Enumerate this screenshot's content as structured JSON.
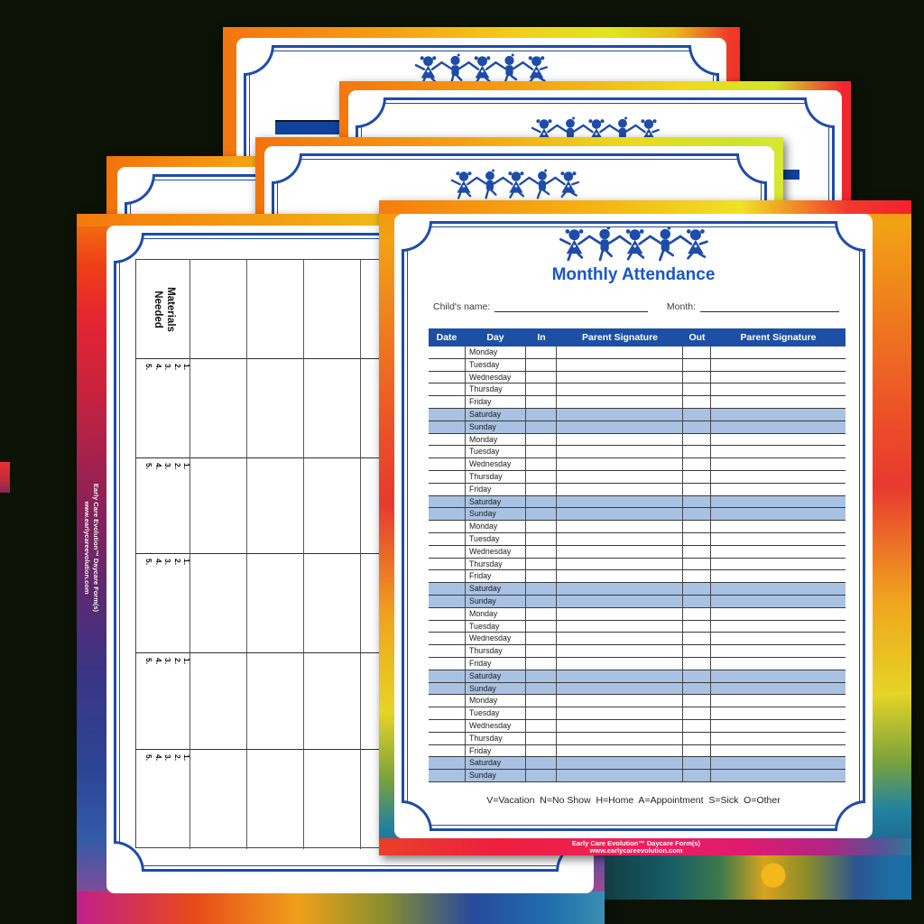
{
  "background_color": "#0c1206",
  "brand": {
    "line1": "Early Care Evolution™ Daycare Form(s)",
    "line2": "www.earlycareevolution.com"
  },
  "colors": {
    "frame_blue": "#1e4ca8",
    "header_band": "#1d4fa5",
    "title_blue": "#1a57c9",
    "weekend_row": "#a9c2e3"
  },
  "attendance_form": {
    "title": "Monthly Attendance",
    "child_name_label": "Child's name:",
    "month_label": "Month:",
    "table": {
      "headers": [
        "Date",
        "Day",
        "In",
        "Parent Signature",
        "Out",
        "Parent Signature"
      ],
      "weeks": 5,
      "days": [
        "Monday",
        "Tuesday",
        "Wednesday",
        "Thursday",
        "Friday",
        "Saturday",
        "Sunday"
      ],
      "weekend_days": [
        "Saturday",
        "Sunday"
      ]
    },
    "legend_items": [
      {
        "code": "V",
        "label": "Vacation"
      },
      {
        "code": "N",
        "label": "No Show"
      },
      {
        "code": "H",
        "label": "Home"
      },
      {
        "code": "A",
        "label": "Appointment"
      },
      {
        "code": "S",
        "label": "Sick"
      },
      {
        "code": "O",
        "label": "Other"
      }
    ]
  },
  "materials_form": {
    "column_header": "Materials Needed",
    "row_groups": 5,
    "group_items": [
      "1.",
      "2.",
      "3.",
      "4.",
      "5."
    ]
  },
  "icons": {
    "kids_clipart": "five dancing children holding hands"
  }
}
